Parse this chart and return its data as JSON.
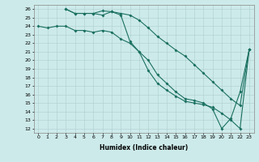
{
  "xlabel": "Humidex (Indice chaleur)",
  "ylabel": "",
  "xlim": [
    -0.5,
    23.5
  ],
  "ylim": [
    11.5,
    26.5
  ],
  "xticks": [
    0,
    1,
    2,
    3,
    4,
    5,
    6,
    7,
    8,
    9,
    10,
    11,
    12,
    13,
    14,
    15,
    16,
    17,
    18,
    19,
    20,
    21,
    22,
    23
  ],
  "yticks": [
    12,
    13,
    14,
    15,
    16,
    17,
    18,
    19,
    20,
    21,
    22,
    23,
    24,
    25,
    26
  ],
  "background_color": "#cdeaea",
  "grid_color": "#aecece",
  "line_color": "#1a7060",
  "line1_x": [
    0,
    1,
    2,
    3,
    4,
    5,
    6,
    7,
    8,
    9,
    10,
    11,
    12,
    13,
    14,
    15,
    16,
    17,
    18,
    19,
    20,
    21,
    22,
    23
  ],
  "line1_y": [
    24.0,
    23.8,
    24.0,
    24.0,
    23.5,
    23.5,
    23.3,
    23.5,
    23.3,
    22.5,
    22.0,
    21.0,
    20.0,
    18.3,
    17.3,
    16.3,
    15.5,
    15.3,
    15.0,
    14.3,
    12.0,
    13.2,
    16.3,
    21.3
  ],
  "line2_x": [
    3,
    4,
    5,
    6,
    7,
    8,
    9,
    10,
    11,
    12,
    13,
    14,
    15,
    16,
    17,
    18,
    19,
    20,
    21,
    22,
    23
  ],
  "line2_y": [
    26.0,
    25.5,
    25.5,
    25.5,
    25.8,
    25.7,
    25.5,
    25.3,
    24.7,
    23.8,
    22.8,
    22.0,
    21.2,
    20.5,
    19.5,
    18.5,
    17.5,
    16.5,
    15.5,
    14.7,
    21.3
  ],
  "line3_x": [
    3,
    4,
    5,
    6,
    7,
    8,
    9,
    10,
    11,
    12,
    13,
    14,
    15,
    16,
    17,
    18,
    19,
    20,
    21,
    22,
    23
  ],
  "line3_y": [
    26.0,
    25.5,
    25.5,
    25.5,
    25.3,
    25.7,
    25.3,
    22.2,
    21.0,
    18.8,
    17.3,
    16.5,
    15.8,
    15.2,
    15.0,
    14.8,
    14.5,
    13.8,
    13.0,
    12.0,
    21.3
  ]
}
